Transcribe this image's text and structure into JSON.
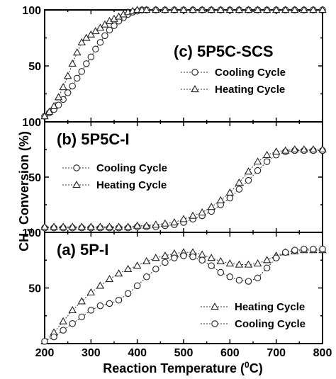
{
  "chart_data": {
    "type": "line",
    "xlabel_prefix": "Reaction Temperature (",
    "xlabel_sup": "0",
    "xlabel_suffix": "C)",
    "ylabel_main": "CH",
    "ylabel_sub": "4",
    "ylabel_suffix": " Conversion (%)",
    "xlim": [
      200,
      800
    ],
    "xticks": [
      "200",
      "300",
      "400",
      "500",
      "600",
      "700",
      "800"
    ],
    "panels": [
      {
        "id": "c",
        "title": "(c) 5P5C-SCS",
        "ylim": [
          0,
          100
        ],
        "yticks": [
          "50",
          "100"
        ],
        "legend_position": "right-middle",
        "series": [
          {
            "name": "Cooling Cycle",
            "marker": "circle",
            "x": [
              200,
              210,
              220,
              230,
              240,
              250,
              260,
              270,
              280,
              290,
              300,
              310,
              320,
              330,
              340,
              350,
              360,
              370,
              380,
              390,
              400,
              410,
              420,
              440,
              460,
              480,
              500,
              520,
              540,
              560,
              580,
              600,
              620,
              640,
              660,
              680,
              700,
              720,
              740,
              760,
              780,
              800
            ],
            "y": [
              5,
              8,
              11,
              15,
              20,
              26,
              32,
              39,
              45,
              52,
              58,
              65,
              71,
              77,
              82,
              86,
              90,
              93,
              96,
              98,
              99,
              100,
              100,
              100,
              100,
              100,
              100,
              100,
              100,
              100,
              100,
              100,
              100,
              100,
              100,
              100,
              100,
              100,
              100,
              100,
              100,
              100
            ]
          },
          {
            "name": "Heating Cycle",
            "marker": "triangle",
            "x": [
              200,
              210,
              220,
              230,
              240,
              250,
              260,
              270,
              280,
              290,
              300,
              310,
              320,
              330,
              340,
              350,
              360,
              370,
              380,
              390,
              400,
              410,
              420,
              440,
              460,
              480,
              500,
              520,
              540,
              560,
              580,
              600,
              620,
              640,
              660,
              680,
              700,
              720,
              740,
              760,
              780,
              800
            ],
            "y": [
              5,
              9,
              14,
              22,
              31,
              41,
              52,
              62,
              71,
              75,
              78,
              81,
              84,
              87,
              90,
              92,
              94,
              96,
              98,
              99,
              100,
              100,
              100,
              100,
              100,
              100,
              100,
              100,
              100,
              100,
              100,
              100,
              100,
              100,
              100,
              100,
              100,
              100,
              100,
              100,
              100,
              100
            ]
          }
        ]
      },
      {
        "id": "b",
        "title": "(b) 5P5C-I",
        "ylim": [
          0,
          100
        ],
        "yticks": [
          "50",
          "100"
        ],
        "legend_position": "left-middle",
        "series": [
          {
            "name": "Cooling Cycle",
            "marker": "circle",
            "x": [
              200,
              220,
              240,
              260,
              280,
              300,
              320,
              340,
              360,
              380,
              400,
              420,
              440,
              460,
              480,
              500,
              520,
              540,
              560,
              580,
              600,
              620,
              640,
              660,
              680,
              700,
              720,
              740,
              760,
              780,
              800
            ],
            "y": [
              4,
              4,
              4,
              4,
              4,
              4,
              4,
              4,
              4,
              4,
              5,
              5,
              5,
              6,
              7,
              9,
              12,
              15,
              19,
              25,
              31,
              39,
              47,
              56,
              64,
              70,
              73,
              74,
              74,
              74,
              74
            ]
          },
          {
            "name": "Heating Cycle",
            "marker": "triangle",
            "x": [
              200,
              220,
              240,
              260,
              280,
              300,
              320,
              340,
              360,
              380,
              400,
              420,
              440,
              460,
              480,
              500,
              520,
              540,
              560,
              580,
              600,
              620,
              640,
              660,
              680,
              700,
              720,
              740,
              760,
              780,
              800
            ],
            "y": [
              5,
              5,
              5,
              5,
              5,
              5,
              5,
              5,
              5,
              5,
              6,
              6,
              7,
              8,
              9,
              12,
              15,
              18,
              23,
              29,
              36,
              45,
              55,
              64,
              70,
              73,
              74,
              75,
              75,
              75,
              75
            ]
          }
        ]
      },
      {
        "id": "a",
        "title": "(a) 5P-I",
        "ylim": [
          0,
          100
        ],
        "yticks": [
          "50",
          "100"
        ],
        "legend_position": "right-bottom",
        "series": [
          {
            "name": "Heating Cycle",
            "marker": "triangle",
            "x": [
              200,
              220,
              240,
              260,
              280,
              300,
              320,
              340,
              360,
              380,
              400,
              420,
              440,
              460,
              480,
              500,
              520,
              540,
              560,
              580,
              600,
              620,
              640,
              660,
              680,
              700,
              720,
              740,
              760,
              780,
              800
            ],
            "y": [
              2,
              10,
              20,
              30,
              38,
              46,
              52,
              58,
              63,
              67,
              70,
              74,
              77,
              79,
              81,
              82,
              82,
              80,
              77,
              74,
              72,
              71,
              71,
              72,
              75,
              79,
              82,
              83,
              84,
              84,
              84
            ]
          },
          {
            "name": "Cooling Cycle",
            "marker": "circle",
            "x": [
              200,
              220,
              240,
              260,
              280,
              300,
              320,
              340,
              360,
              380,
              400,
              420,
              440,
              460,
              480,
              500,
              520,
              540,
              560,
              580,
              600,
              620,
              640,
              660,
              680,
              700,
              720,
              740,
              760,
              780,
              800
            ],
            "y": [
              2,
              6,
              12,
              18,
              24,
              30,
              34,
              36,
              39,
              45,
              52,
              60,
              67,
              73,
              77,
              79,
              78,
              75,
              70,
              64,
              60,
              57,
              56,
              59,
              68,
              77,
              82,
              84,
              85,
              85,
              85
            ]
          }
        ]
      }
    ]
  }
}
